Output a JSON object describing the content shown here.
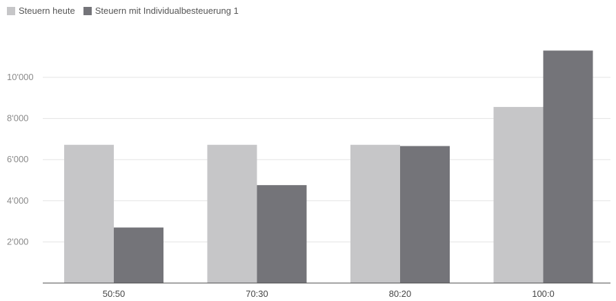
{
  "chart_data": {
    "type": "bar",
    "title": "",
    "xlabel": "",
    "ylabel": "",
    "categories": [
      "50:50",
      "70:30",
      "80:20",
      "100:0"
    ],
    "series": [
      {
        "name": "Steuern heute",
        "values": [
          6720,
          6720,
          6720,
          8560
        ],
        "color": "#c6c6c8"
      },
      {
        "name": "Steuern mit Individualbesteuerung 1",
        "values": [
          2700,
          4760,
          6660,
          11300
        ],
        "color": "#747479"
      }
    ],
    "ylim": [
      0,
      11800
    ],
    "yticks": [
      2000,
      4000,
      6000,
      8000,
      10000
    ],
    "ytick_labels": [
      "2'000",
      "4'000",
      "6'000",
      "8'000",
      "10'000"
    ],
    "grid": true,
    "legend_position": "top-left"
  }
}
